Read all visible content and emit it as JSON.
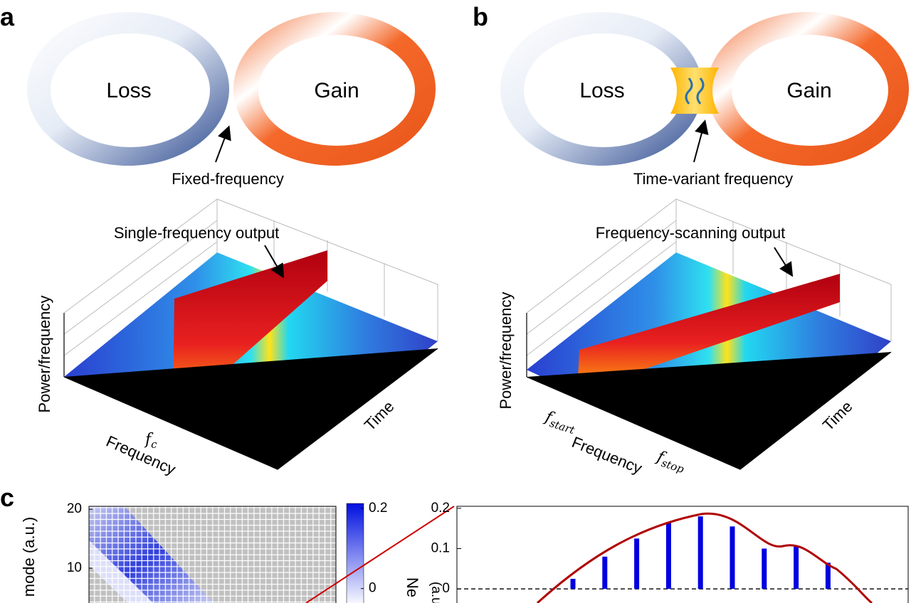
{
  "panel_a": {
    "label": "a",
    "loss": "Loss",
    "gain": "Gain",
    "coupling": "Fixed-frequency",
    "output": "Single-frequency output",
    "z_axis": "Power/frequency",
    "x_axis": "Frequency",
    "y_axis": "Time",
    "marker": {
      "symbol": "f",
      "subscript": "c"
    }
  },
  "panel_b": {
    "label": "b",
    "loss": "Loss",
    "gain": "Gain",
    "coupling": "Time-variant frequency",
    "output": "Frequency-scanning output",
    "z_axis": "Power/frequency",
    "x_axis": "Frequency",
    "y_axis": "Time",
    "markers": [
      {
        "symbol": "f",
        "subscript": "start"
      },
      {
        "symbol": "f",
        "subscript": "stop"
      }
    ]
  },
  "panel_c": {
    "label": "c",
    "heatmap": {
      "y_label": "mode (a.u.)",
      "ylim": [
        4.1,
        20.5
      ],
      "yticks": [
        10,
        20
      ],
      "colorbar": {
        "ylim": [
          -0.036,
          0.205
        ],
        "ticks": [
          0,
          0.2
        ],
        "label": "Ne",
        "unit": "(a.u.)"
      }
    },
    "bar_chart": {
      "type": "bar",
      "ylim": [
        -0.035,
        0.205
      ],
      "yticks": [
        0,
        0.1,
        0.2
      ],
      "color": "#0000e0",
      "values": [
        0.025,
        0.08,
        0.125,
        0.165,
        0.18,
        0.155,
        0.1,
        0.105,
        0.065
      ]
    }
  }
}
